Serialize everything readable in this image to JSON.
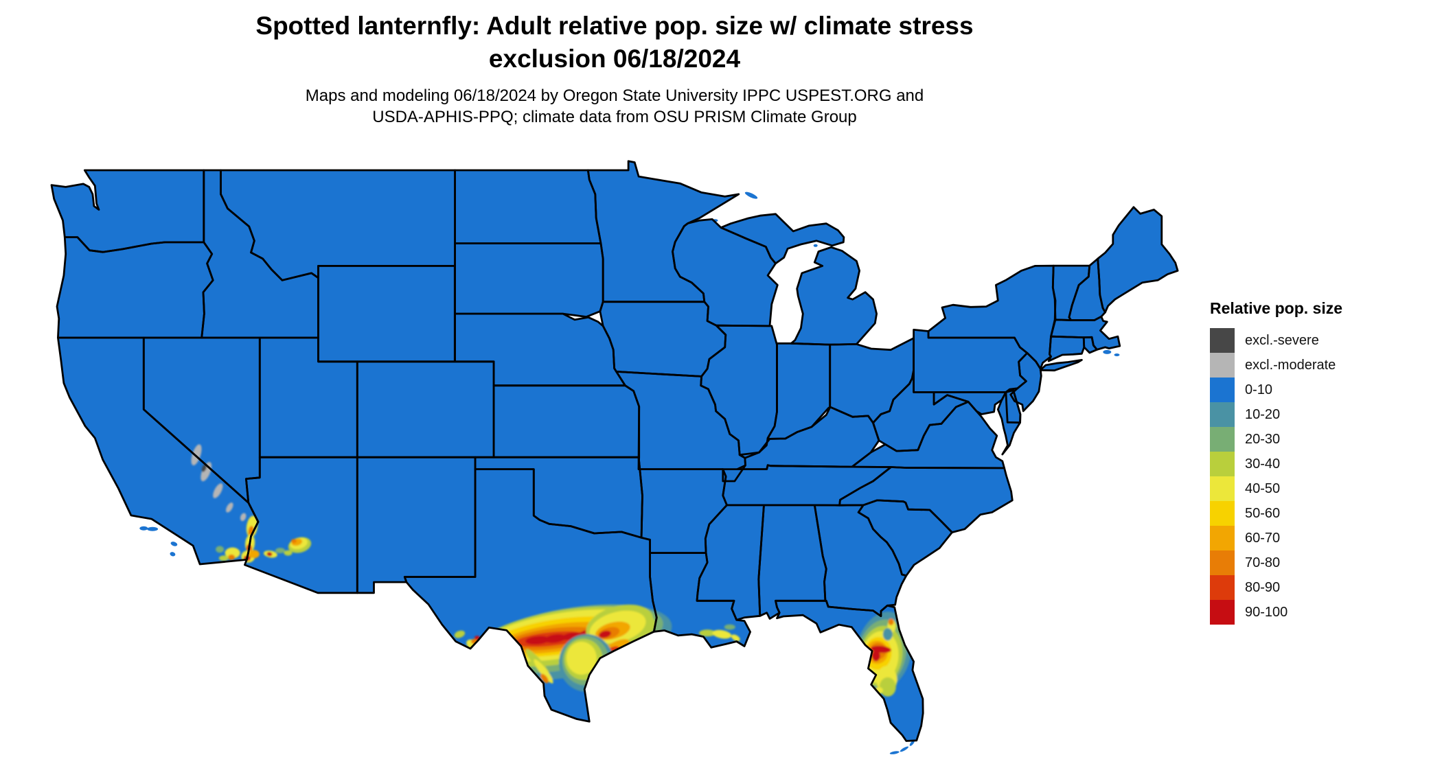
{
  "title": {
    "line1": "Spotted lanternfly: Adult relative pop. size w/ climate stress",
    "line2": "exclusion 06/18/2024"
  },
  "subtitle": {
    "line1": "Maps and modeling 06/18/2024 by Oregon State University IPPC USPEST.ORG and",
    "line2": "USDA-APHIS-PPQ; climate data from OSU PRISM Climate Group"
  },
  "legend": {
    "title": "Relative pop. size",
    "entries": [
      {
        "label": "excl.-severe",
        "color": "#474747"
      },
      {
        "label": "excl.-moderate",
        "color": "#b5b5b5"
      },
      {
        "label": "0-10",
        "color": "#1b74d1"
      },
      {
        "label": "10-20",
        "color": "#4a92a4"
      },
      {
        "label": "20-30",
        "color": "#78ae74"
      },
      {
        "label": "30-40",
        "color": "#b9cf3c"
      },
      {
        "label": "40-50",
        "color": "#ece73a"
      },
      {
        "label": "50-60",
        "color": "#f7d200"
      },
      {
        "label": "60-70",
        "color": "#f2a602"
      },
      {
        "label": "70-80",
        "color": "#e87d06"
      },
      {
        "label": "80-90",
        "color": "#dd3b0b"
      },
      {
        "label": "90-100",
        "color": "#c60d12"
      }
    ]
  },
  "map": {
    "border_color": "#000000",
    "water_color": "#ffffff"
  }
}
